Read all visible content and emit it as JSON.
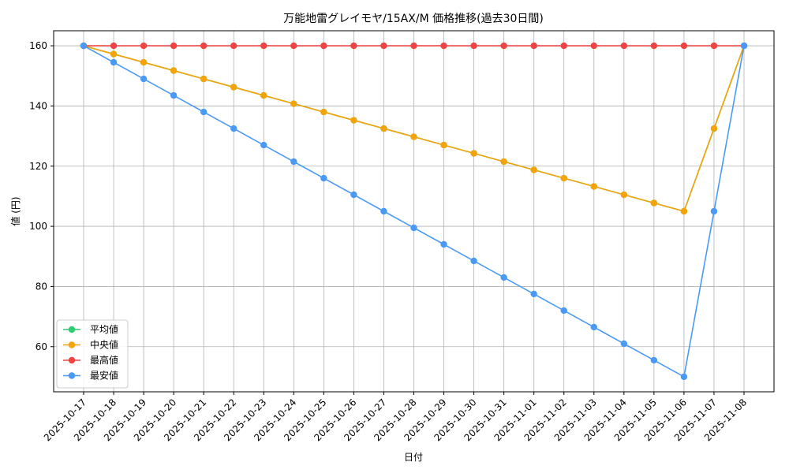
{
  "chart_data": {
    "type": "line",
    "title": "万能地雷グレイモヤ/15AX/M 価格推移(過去30日間)",
    "xlabel": "日付",
    "ylabel": "値 (円)",
    "ylim": [
      45,
      165
    ],
    "yticks": [
      60,
      80,
      100,
      120,
      140,
      160
    ],
    "grid": true,
    "legend_position": "lower-left",
    "categories": [
      "2025-10-17",
      "2025-10-18",
      "2025-10-19",
      "2025-10-20",
      "2025-10-21",
      "2025-10-22",
      "2025-10-23",
      "2025-10-24",
      "2025-10-25",
      "2025-10-26",
      "2025-10-27",
      "2025-10-28",
      "2025-10-29",
      "2025-10-30",
      "2025-10-31",
      "2025-11-01",
      "2025-11-02",
      "2025-11-03",
      "2025-11-04",
      "2025-11-05",
      "2025-11-06",
      "2025-11-07",
      "2025-11-08"
    ],
    "series": [
      {
        "name": "平均値",
        "color": "#2ecc71",
        "values": [
          160,
          157.25,
          154.5,
          151.75,
          149,
          146.25,
          143.5,
          140.75,
          138,
          135.25,
          132.5,
          129.75,
          127,
          124.25,
          121.5,
          118.75,
          116,
          113.25,
          110.5,
          107.75,
          105,
          132.5,
          160
        ]
      },
      {
        "name": "中央値",
        "color": "#f5a30a",
        "values": [
          160,
          157.25,
          154.5,
          151.75,
          149,
          146.25,
          143.5,
          140.75,
          138,
          135.25,
          132.5,
          129.75,
          127,
          124.25,
          121.5,
          118.75,
          116,
          113.25,
          110.5,
          107.75,
          105,
          132.5,
          160
        ]
      },
      {
        "name": "最高値",
        "color": "#ef4444",
        "values": [
          160,
          160,
          160,
          160,
          160,
          160,
          160,
          160,
          160,
          160,
          160,
          160,
          160,
          160,
          160,
          160,
          160,
          160,
          160,
          160,
          160,
          160,
          160
        ]
      },
      {
        "name": "最安値",
        "color": "#4a9af5",
        "values": [
          160,
          154.5,
          149,
          143.5,
          138,
          132.5,
          127,
          121.5,
          116,
          110.5,
          105,
          99.5,
          94,
          88.5,
          83,
          77.5,
          72,
          66.5,
          61,
          55.5,
          50,
          105,
          160
        ]
      }
    ]
  }
}
